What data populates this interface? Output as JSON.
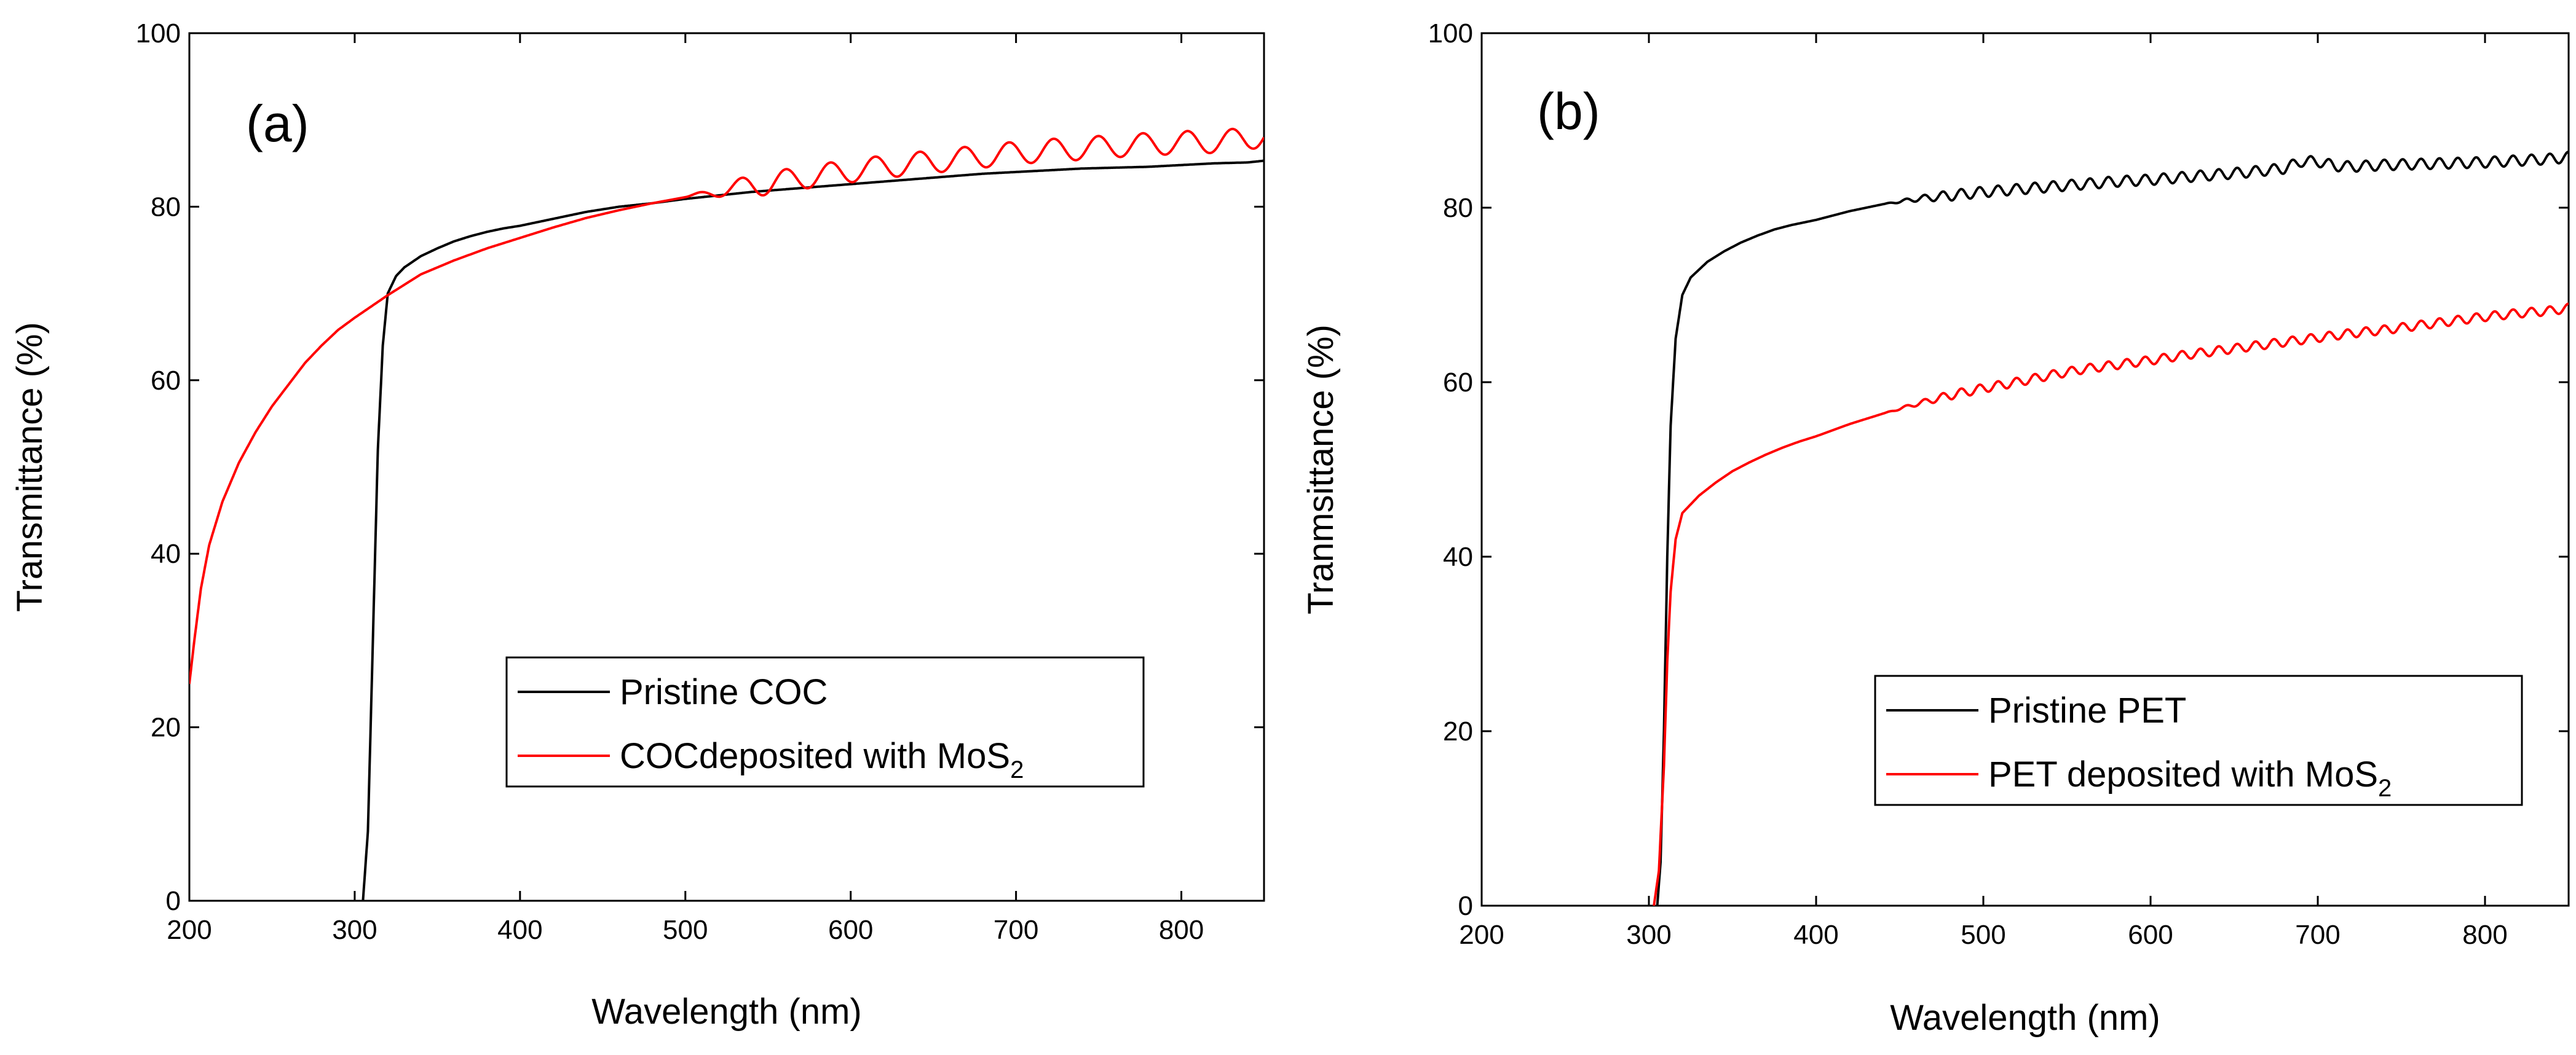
{
  "chart_data": [
    {
      "type": "line",
      "panel_label": "(a)",
      "xlabel": "Wavelength (nm)",
      "ylabel": "Transmittance (%)",
      "xlim": [
        200,
        850
      ],
      "ylim": [
        0,
        100
      ],
      "x_ticks": [
        200,
        300,
        400,
        500,
        600,
        700,
        800
      ],
      "y_ticks": [
        0,
        20,
        40,
        60,
        80,
        100
      ],
      "x_tick_labels": [
        "200",
        "300",
        "400",
        "500",
        "600",
        "700",
        "800"
      ],
      "y_tick_labels": [
        "0",
        "20",
        "40",
        "60",
        "80",
        "100"
      ],
      "grid": false,
      "legend_position": "lower-right",
      "series": [
        {
          "name": "Pristine COC",
          "color": "#000000",
          "points": [
            [
              305,
              0
            ],
            [
              308,
              8
            ],
            [
              311,
              30
            ],
            [
              314,
              52
            ],
            [
              317,
              64
            ],
            [
              320,
              70
            ],
            [
              325,
              72
            ],
            [
              330,
              73
            ],
            [
              340,
              74.3
            ],
            [
              350,
              75.2
            ],
            [
              360,
              76
            ],
            [
              370,
              76.6
            ],
            [
              380,
              77.1
            ],
            [
              390,
              77.5
            ],
            [
              400,
              77.8
            ],
            [
              420,
              78.6
            ],
            [
              440,
              79.4
            ],
            [
              460,
              80
            ],
            [
              480,
              80.4
            ],
            [
              500,
              80.9
            ],
            [
              520,
              81.3
            ],
            [
              540,
              81.7
            ],
            [
              560,
              82
            ],
            [
              580,
              82.3
            ],
            [
              600,
              82.6
            ],
            [
              620,
              82.9
            ],
            [
              640,
              83.2
            ],
            [
              660,
              83.5
            ],
            [
              680,
              83.8
            ],
            [
              700,
              84
            ],
            [
              720,
              84.2
            ],
            [
              740,
              84.4
            ],
            [
              760,
              84.5
            ],
            [
              780,
              84.6
            ],
            [
              800,
              84.8
            ],
            [
              820,
              85
            ],
            [
              840,
              85.1
            ],
            [
              850,
              85.3
            ]
          ]
        },
        {
          "name": "COCdeposited with MoS",
          "name_subscript": "2",
          "color": "#ff0000",
          "points": [
            [
              200,
              25
            ],
            [
              203,
              30
            ],
            [
              207,
              36
            ],
            [
              212,
              41
            ],
            [
              220,
              46
            ],
            [
              230,
              50.5
            ],
            [
              240,
              54
            ],
            [
              250,
              57
            ],
            [
              260,
              59.5
            ],
            [
              270,
              62
            ],
            [
              280,
              64
            ],
            [
              290,
              65.8
            ],
            [
              300,
              67.2
            ],
            [
              310,
              68.5
            ],
            [
              320,
              69.8
            ],
            [
              330,
              71
            ],
            [
              340,
              72.2
            ],
            [
              350,
              73
            ],
            [
              360,
              73.8
            ],
            [
              370,
              74.5
            ],
            [
              380,
              75.2
            ],
            [
              390,
              75.8
            ],
            [
              400,
              76.4
            ],
            [
              420,
              77.6
            ],
            [
              440,
              78.7
            ],
            [
              460,
              79.6
            ],
            [
              480,
              80.4
            ],
            [
              500,
              81.1
            ],
            [
              520,
              81.8
            ],
            [
              540,
              82.4
            ],
            [
              560,
              83
            ],
            [
              580,
              83.6
            ],
            [
              600,
              84.1
            ],
            [
              620,
              84.6
            ],
            [
              640,
              85
            ],
            [
              660,
              85.4
            ],
            [
              680,
              85.8
            ],
            [
              700,
              86.2
            ],
            [
              720,
              86.5
            ],
            [
              740,
              86.7
            ],
            [
              760,
              87
            ],
            [
              780,
              87.2
            ],
            [
              800,
              87.4
            ],
            [
              820,
              87.5
            ],
            [
              840,
              87.8
            ],
            [
              850,
              88.3
            ]
          ],
          "oscillation": {
            "start_x": 500,
            "period_x": 27,
            "amplitude": 1.3
          }
        }
      ]
    },
    {
      "type": "line",
      "panel_label": "(b)",
      "xlabel": "Wavelength (nm)",
      "ylabel": "Tranmsittance (%)",
      "xlim": [
        200,
        850
      ],
      "ylim": [
        0,
        100
      ],
      "x_ticks": [
        200,
        300,
        400,
        500,
        600,
        700,
        800
      ],
      "y_ticks": [
        0,
        20,
        40,
        60,
        80,
        100
      ],
      "x_tick_labels": [
        "200",
        "300",
        "400",
        "500",
        "600",
        "700",
        "800"
      ],
      "y_tick_labels": [
        "0",
        "20",
        "40",
        "60",
        "80",
        "100"
      ],
      "grid": false,
      "legend_position": "lower-right",
      "series": [
        {
          "name": "Pristine PET",
          "color": "#000000",
          "points": [
            [
              305,
              0
            ],
            [
              307,
              5
            ],
            [
              309,
              20
            ],
            [
              311,
              40
            ],
            [
              313,
              55
            ],
            [
              316,
              65
            ],
            [
              320,
              70
            ],
            [
              325,
              72
            ],
            [
              335,
              73.8
            ],
            [
              345,
              75
            ],
            [
              355,
              76
            ],
            [
              365,
              76.8
            ],
            [
              375,
              77.5
            ],
            [
              385,
              78
            ],
            [
              400,
              78.6
            ],
            [
              420,
              79.6
            ],
            [
              440,
              80.4
            ],
            [
              460,
              81
            ],
            [
              480,
              81.4
            ],
            [
              500,
              81.8
            ],
            [
              520,
              82.1
            ],
            [
              540,
              82.4
            ],
            [
              560,
              82.7
            ],
            [
              580,
              83
            ],
            [
              600,
              83.2
            ],
            [
              620,
              83.5
            ],
            [
              640,
              83.8
            ],
            [
              660,
              84.1
            ],
            [
              680,
              84.5
            ],
            [
              690,
              85.3
            ],
            [
              700,
              85.3
            ],
            [
              710,
              84.8
            ],
            [
              720,
              84.7
            ],
            [
              740,
              84.9
            ],
            [
              760,
              85
            ],
            [
              780,
              85.1
            ],
            [
              800,
              85.2
            ],
            [
              820,
              85.4
            ],
            [
              840,
              85.6
            ],
            [
              850,
              85.8
            ]
          ],
          "oscillation": {
            "start_x": 440,
            "period_x": 11,
            "amplitude": 0.6
          }
        },
        {
          "name": "PET deposited with MoS",
          "name_subscript": "2",
          "color": "#ff0000",
          "points": [
            [
              303,
              0
            ],
            [
              306,
              4
            ],
            [
              309,
              16
            ],
            [
              311,
              28
            ],
            [
              313,
              36
            ],
            [
              316,
              42
            ],
            [
              320,
              45
            ],
            [
              330,
              47
            ],
            [
              340,
              48.5
            ],
            [
              350,
              49.8
            ],
            [
              360,
              50.8
            ],
            [
              370,
              51.7
            ],
            [
              380,
              52.5
            ],
            [
              390,
              53.2
            ],
            [
              400,
              53.8
            ],
            [
              420,
              55.2
            ],
            [
              440,
              56.4
            ],
            [
              460,
              57.5
            ],
            [
              480,
              58.5
            ],
            [
              500,
              59.3
            ],
            [
              520,
              60
            ],
            [
              540,
              60.8
            ],
            [
              560,
              61.5
            ],
            [
              580,
              62
            ],
            [
              600,
              62.5
            ],
            [
              620,
              63.1
            ],
            [
              640,
              63.6
            ],
            [
              660,
              64.1
            ],
            [
              680,
              64.6
            ],
            [
              700,
              65.1
            ],
            [
              720,
              65.6
            ],
            [
              740,
              66
            ],
            [
              760,
              66.5
            ],
            [
              780,
              67
            ],
            [
              800,
              67.5
            ],
            [
              820,
              67.9
            ],
            [
              840,
              68.2
            ],
            [
              850,
              68.5
            ]
          ],
          "oscillation": {
            "start_x": 440,
            "period_x": 11,
            "amplitude": 0.5
          }
        }
      ]
    }
  ]
}
